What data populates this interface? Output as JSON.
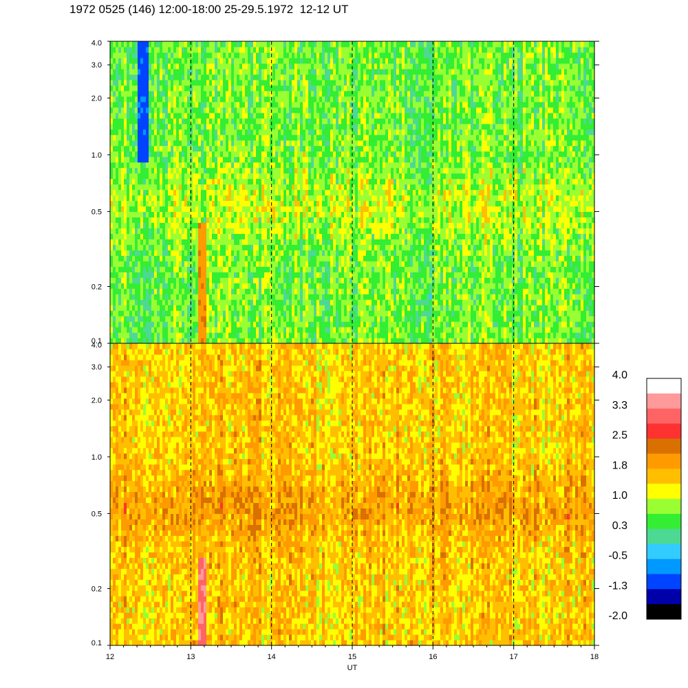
{
  "title": "1972 0525 (146) 12:00-18:00 25-29.5.1972  12-12 UT",
  "colors": {
    "background": "#ffffff",
    "axis": "#000000",
    "hour_marker": "#000000"
  },
  "chart_data": {
    "type": "heatmap",
    "title": "1972 0525 (146) 12:00-18:00 25-29.5.1972  12-12 UT",
    "xlabel": "UT",
    "x_ticks": [
      12,
      13,
      14,
      15,
      16,
      17,
      18
    ],
    "xlim": [
      12,
      18
    ],
    "hour_markers": [
      13,
      14,
      15,
      16,
      17
    ],
    "panels": [
      {
        "name": "upper",
        "ylim": [
          0.1,
          4.0
        ],
        "y_scale": "log",
        "y_ticks": [
          "0.1",
          "0.2",
          "0.5",
          "1.0",
          "2.0",
          "3.0",
          "4.0"
        ],
        "y_tick_values": [
          0.1,
          0.2,
          0.5,
          1.0,
          2.0,
          3.0,
          4.0
        ],
        "baseline_level": 0.6,
        "features": [
          {
            "description_level": "burst",
            "x_range": [
              13.08,
              13.2
            ],
            "y_range": [
              0.1,
              0.45
            ],
            "level": 2.0
          },
          {
            "description_level": "low",
            "x_range": [
              12.35,
              12.48
            ],
            "y_range": [
              0.9,
              4.0
            ],
            "level": -1.0
          }
        ]
      },
      {
        "name": "lower",
        "ylim": [
          0.1,
          4.0
        ],
        "y_scale": "log",
        "y_ticks": [
          "0.1",
          "0.2",
          "0.5",
          "1.0",
          "2.0",
          "3.0",
          "4.0"
        ],
        "y_tick_values": [
          0.1,
          0.2,
          0.5,
          1.0,
          2.0,
          3.0,
          4.0
        ],
        "baseline_level": 1.5,
        "features": [
          {
            "description_level": "burst",
            "x_range": [
              13.08,
              13.2
            ],
            "y_range": [
              0.1,
              0.3
            ],
            "level": 3.2
          }
        ]
      }
    ],
    "colorbar": {
      "labels": [
        "4.0",
        "3.3",
        "2.5",
        "1.8",
        "1.0",
        "0.3",
        "-0.5",
        "-1.3",
        "-2.0"
      ],
      "colors": [
        "#ffffff",
        "#ff9a9a",
        "#ff6464",
        "#ff3232",
        "#d97000",
        "#ff9a00",
        "#ffbf00",
        "#ffff00",
        "#99ff33",
        "#33ee33",
        "#4dd994",
        "#33ccff",
        "#0099ff",
        "#0044ff",
        "#0000aa",
        "#000000"
      ],
      "min": -2.0,
      "max": 4.0
    }
  }
}
